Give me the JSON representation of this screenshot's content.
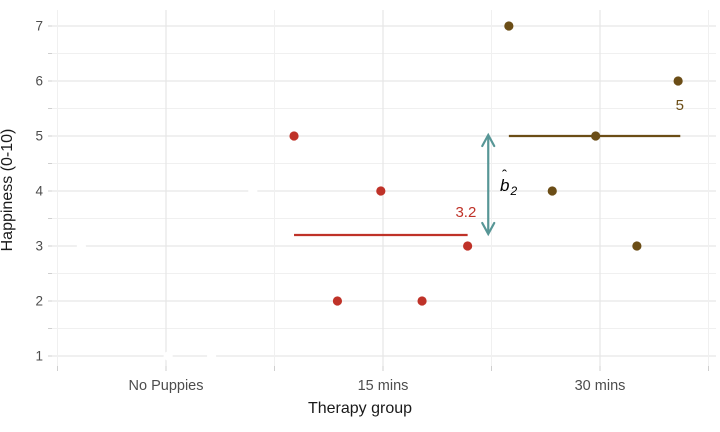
{
  "figure": {
    "xlabel": "Therapy group",
    "ylabel": "Happiness (0-10)"
  },
  "annotation": {
    "label_hat": "ˆ",
    "label_base": "b",
    "label_sub": "2"
  },
  "chart_data": {
    "type": "scatter",
    "title": "",
    "xlabel": "Therapy group",
    "ylabel": "Happiness (0-10)",
    "x_categories": [
      "No Puppies",
      "15 mins",
      "30 mins"
    ],
    "x_category_positions": [
      1,
      2,
      3
    ],
    "x_gridlines": [
      0.5,
      1,
      1.5,
      2,
      2.5,
      3,
      3.5
    ],
    "x_ticks": [
      0.5,
      1,
      1.5,
      2,
      2.5,
      3,
      3.5
    ],
    "y_tick_labels": [
      "1",
      "2",
      "3",
      "4",
      "5",
      "6",
      "7"
    ],
    "y_tick_values": [
      1,
      2,
      3,
      4,
      5,
      6,
      7
    ],
    "y_gridlines": [
      1,
      1.5,
      2,
      2.5,
      3,
      3.5,
      4,
      4.5,
      5,
      5.5,
      6,
      6.5,
      7
    ],
    "y_minor_ticks": [
      1.5,
      2.5,
      3.5,
      4.5,
      5.5,
      6.5
    ],
    "xlim": [
      0.47,
      3.53
    ],
    "ylim": [
      0.8,
      7.3
    ],
    "grid": true,
    "legend": false,
    "colors": {
      "group_no_puppies": "#FFFFFF",
      "group_15_mins": "#BF3228",
      "group_30_mins": "#6B4D16",
      "arrow": "#579696",
      "grid_major": "#E7E7E7",
      "grid_minor": "#F0F0F0",
      "tick": "#CFCFCF",
      "axis_text": "#4D4D4D"
    },
    "series": [
      {
        "name": "No Puppies",
        "color": "#FFFFFF",
        "hidden": true,
        "points": [
          {
            "x": 0.61,
            "y": 3
          },
          {
            "x": 1.01,
            "y": 1
          },
          {
            "x": 1.21,
            "y": 1
          },
          {
            "x": 1.4,
            "y": 4
          }
        ]
      },
      {
        "name": "15 mins",
        "color": "#BF3228",
        "mean": 3.2,
        "mean_label": "3.2",
        "mean_line": {
          "x1": 1.59,
          "x2": 2.39,
          "y": 3.2
        },
        "mean_label_pos": {
          "x": 2.382,
          "y": 3.62
        },
        "points": [
          {
            "x": 1.59,
            "y": 5
          },
          {
            "x": 1.99,
            "y": 4
          },
          {
            "x": 2.39,
            "y": 3
          },
          {
            "x": 1.79,
            "y": 2
          },
          {
            "x": 2.18,
            "y": 2
          }
        ]
      },
      {
        "name": "30 mins",
        "color": "#6B4D16",
        "mean": 5,
        "mean_label": "5",
        "mean_line": {
          "x1": 2.58,
          "x2": 3.37,
          "y": 5
        },
        "mean_label_pos": {
          "x": 3.368,
          "y": 5.56
        },
        "points": [
          {
            "x": 2.58,
            "y": 7
          },
          {
            "x": 3.36,
            "y": 6
          },
          {
            "x": 2.98,
            "y": 5
          },
          {
            "x": 2.78,
            "y": 4
          },
          {
            "x": 3.17,
            "y": 3
          }
        ]
      }
    ],
    "annotations": [
      {
        "type": "double_arrow",
        "x": 2.485,
        "y_from": 5,
        "y_to": 3.2,
        "color": "#579696",
        "label": "b̂2",
        "label_meaning": "estimated coefficient b-hat-2 (30 mins mean minus 15 mins mean)"
      }
    ]
  }
}
